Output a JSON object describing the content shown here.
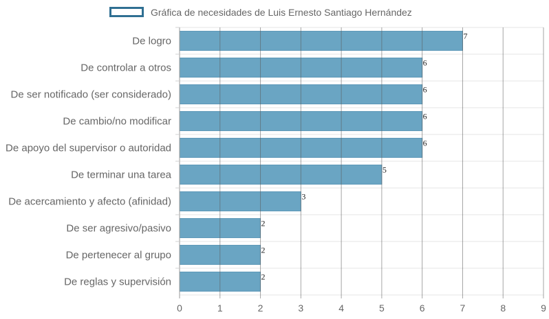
{
  "chart_data": {
    "type": "bar",
    "orientation": "horizontal",
    "categories": [
      "De logro",
      "De controlar a otros",
      "De ser notificado (ser considerado)",
      "De cambio/no modificar",
      "De apoyo del supervisor o autoridad",
      "De terminar una tarea",
      "De acercamiento y afecto (afinidad)",
      "De ser agresivo/pasivo",
      "De pertenecer al grupo",
      "De reglas y supervisión"
    ],
    "series": [
      {
        "name": "Gráfica de necesidades de Luis Ernesto Santiago Hernández",
        "values": [
          7,
          6,
          6,
          6,
          6,
          5,
          3,
          2,
          2,
          2
        ]
      }
    ],
    "xlim": [
      0,
      9
    ],
    "xticks": [
      "0",
      "1",
      "2",
      "3",
      "4",
      "5",
      "6",
      "7",
      "8",
      "9"
    ],
    "grid": true,
    "legend_position": "top",
    "data_labels": true,
    "colors": {
      "bar": "#6aa5c3",
      "bar_border": "#5d98b8",
      "legend_border": "#2f6f92"
    }
  }
}
